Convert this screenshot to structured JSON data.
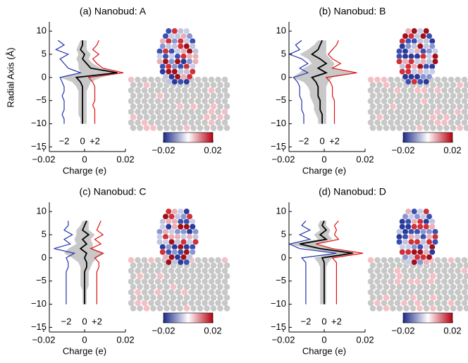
{
  "chart_data": [
    {
      "type": "line",
      "title": "(a) Nanobud: A",
      "xlabel": "Charge (e)",
      "ylabel": "Radial Axis (Å)",
      "xlim": [
        -0.02,
        0.02
      ],
      "ylim": [
        -16,
        12
      ],
      "xticks": [
        {
          "value": -0.02,
          "label": "−0.02"
        },
        0,
        0.02
      ],
      "yticks": [
        {
          "value": -15,
          "label": "−15"
        },
        {
          "value": -10,
          "label": "−10"
        },
        {
          "value": -5,
          "label": "−5"
        },
        0,
        5,
        10
      ],
      "y": [
        -10,
        -9,
        -8,
        -7,
        -6,
        -5,
        -4,
        -3,
        -2,
        -1,
        0,
        1,
        2,
        3,
        4,
        5,
        6,
        7,
        8
      ],
      "band": {
        "color": "#c8c8c8",
        "low": [
          -0.002,
          -0.002,
          -0.003,
          -0.003,
          -0.003,
          -0.003,
          -0.003,
          -0.003,
          -0.004,
          -0.006,
          -0.012,
          -0.002,
          -0.003,
          -0.003,
          -0.004,
          -0.003,
          -0.004,
          -0.003,
          -0.002
        ],
        "high": [
          0.001,
          0.001,
          0.001,
          0.001,
          0.001,
          0.001,
          0.001,
          0.001,
          0.002,
          0.003,
          0.008,
          0.018,
          0.008,
          0.004,
          0.002,
          0.003,
          0.001,
          0.001,
          0.001
        ]
      },
      "series": [
        {
          "color": "#2233aa",
          "values": [
            -0.01,
            -0.01,
            -0.011,
            -0.01,
            -0.01,
            -0.01,
            -0.011,
            -0.01,
            -0.01,
            -0.011,
            -0.012,
            -0.002,
            -0.008,
            -0.01,
            -0.012,
            -0.008,
            -0.014,
            -0.01,
            -0.013
          ]
        },
        {
          "color": "#000000",
          "values": [
            -0.001,
            -0.001,
            -0.001,
            -0.001,
            -0.001,
            -0.001,
            -0.001,
            -0.001,
            -0.001,
            -0.002,
            -0.004,
            0.016,
            0.003,
            0.001,
            -0.001,
            0,
            -0.002,
            -0.001,
            -0.001
          ]
        },
        {
          "color": "#dd1111",
          "values": [
            0.005,
            0.005,
            0.005,
            0.005,
            0.004,
            0.005,
            0.005,
            0.005,
            0.005,
            0.004,
            0.002,
            0.019,
            0.009,
            0.006,
            0.004,
            0.007,
            0.004,
            0.006,
            0.007
          ]
        }
      ],
      "annotations": [
        {
          "text": "−2",
          "color": "#2233aa"
        },
        {
          "text": "0",
          "color": "#000000"
        },
        {
          "text": "+2",
          "color": "#dd1111"
        }
      ],
      "colorbar": {
        "colors": [
          "#1c2a8a",
          "#ffffff",
          "#b80010"
        ],
        "ticks": [
          {
            "value": -0.02,
            "label": "−0.02"
          },
          0.02
        ]
      }
    },
    {
      "type": "line",
      "title": "(b) Nanobud: B",
      "xlabel": "Charge (e)",
      "xlim": [
        -0.02,
        0.02
      ],
      "ylim": [
        -16,
        12
      ],
      "xticks": [
        {
          "value": -0.02,
          "label": "−0.02"
        },
        0,
        0.02
      ],
      "yticks": [
        {
          "value": -15,
          "label": "−15"
        },
        {
          "value": -10,
          "label": "−10"
        },
        {
          "value": -5,
          "label": "−5"
        },
        0,
        5,
        10
      ],
      "y": [
        -10,
        -9,
        -8,
        -7,
        -6,
        -5,
        -4,
        -3,
        -2,
        -1,
        0,
        1,
        2,
        3,
        4,
        5,
        6,
        7,
        8
      ],
      "band": {
        "color": "#c8c8c8",
        "low": [
          -0.003,
          -0.003,
          -0.004,
          -0.005,
          -0.005,
          -0.006,
          -0.007,
          -0.007,
          -0.008,
          -0.01,
          -0.016,
          -0.012,
          -0.01,
          -0.006,
          -0.008,
          -0.012,
          -0.008,
          -0.005,
          -0.003
        ],
        "high": [
          0.001,
          0.001,
          0.001,
          0.001,
          0.001,
          0.001,
          0.001,
          0.001,
          0.001,
          0.002,
          0.004,
          0.016,
          0.004,
          0.005,
          0.003,
          0.001,
          0.001,
          0.001,
          0.001
        ]
      },
      "series": [
        {
          "color": "#2233aa",
          "values": [
            -0.01,
            -0.01,
            -0.01,
            -0.011,
            -0.011,
            -0.011,
            -0.012,
            -0.012,
            -0.012,
            -0.013,
            -0.015,
            -0.008,
            -0.012,
            -0.008,
            -0.011,
            -0.017,
            -0.012,
            -0.014,
            -0.011
          ]
        },
        {
          "color": "#000000",
          "values": [
            -0.001,
            -0.001,
            -0.001,
            -0.002,
            -0.002,
            -0.002,
            -0.003,
            -0.003,
            -0.003,
            -0.004,
            -0.006,
            0.001,
            -0.003,
            0.001,
            -0.002,
            -0.006,
            -0.003,
            -0.002,
            -0.001
          ]
        },
        {
          "color": "#dd1111",
          "values": [
            0.005,
            0.005,
            0.005,
            0.005,
            0.005,
            0.005,
            0.004,
            0.004,
            0.004,
            0.003,
            0.001,
            0.016,
            0.004,
            0.008,
            0.004,
            0.002,
            0.004,
            0.006,
            0.007
          ]
        }
      ],
      "annotations": [
        {
          "text": "−2",
          "color": "#2233aa"
        },
        {
          "text": "0",
          "color": "#000000"
        },
        {
          "text": "+2",
          "color": "#dd1111"
        }
      ],
      "colorbar": {
        "colors": [
          "#1c2a8a",
          "#ffffff",
          "#b80010"
        ],
        "ticks": [
          {
            "value": -0.02,
            "label": "−0.02"
          },
          0.02
        ]
      }
    },
    {
      "type": "line",
      "title": "(c) Nanobud: C",
      "xlabel": "Charge (e)",
      "xlim": [
        -0.02,
        0.02
      ],
      "ylim": [
        -16,
        12
      ],
      "xticks": [
        {
          "value": -0.02,
          "label": "−0.02"
        },
        0,
        0.02
      ],
      "yticks": [
        {
          "value": -15,
          "label": "−15"
        },
        {
          "value": -10,
          "label": "−10"
        },
        {
          "value": -5,
          "label": "−5"
        },
        0,
        5,
        10
      ],
      "y": [
        -10,
        -9,
        -8,
        -7,
        -6,
        -5,
        -4,
        -3,
        -2,
        -1,
        0,
        1,
        2,
        3,
        4,
        5,
        6,
        7,
        8
      ],
      "band": {
        "color": "#c8c8c8",
        "low": [
          -0.001,
          -0.001,
          -0.001,
          -0.001,
          -0.002,
          -0.002,
          -0.002,
          -0.002,
          -0.002,
          -0.003,
          -0.006,
          -0.01,
          -0.008,
          -0.004,
          -0.005,
          -0.004,
          -0.004,
          -0.002,
          -0.001
        ],
        "high": [
          0.001,
          0.001,
          0.001,
          0.001,
          0.002,
          0.002,
          0.002,
          0.002,
          0.003,
          0.004,
          0.006,
          0.01,
          0.004,
          0.004,
          0.003,
          0.005,
          0.002,
          0.002,
          0.002
        ]
      },
      "series": [
        {
          "color": "#2233aa",
          "values": [
            -0.009,
            -0.009,
            -0.009,
            -0.009,
            -0.009,
            -0.009,
            -0.009,
            -0.009,
            -0.008,
            -0.008,
            -0.009,
            -0.005,
            -0.015,
            -0.007,
            -0.01,
            -0.006,
            -0.01,
            -0.008,
            -0.008
          ]
        },
        {
          "color": "#000000",
          "values": [
            0,
            0,
            0,
            0,
            0,
            0,
            0,
            0,
            0.001,
            0.001,
            0,
            0.001,
            -0.002,
            0.001,
            -0.001,
            0.002,
            -0.001,
            0,
            0.001
          ]
        },
        {
          "color": "#dd1111",
          "values": [
            0.006,
            0.006,
            0.006,
            0.006,
            0.006,
            0.006,
            0.006,
            0.006,
            0.007,
            0.007,
            0.005,
            0.009,
            0.003,
            0.008,
            0.005,
            0.009,
            0.006,
            0.007,
            0.008
          ]
        }
      ],
      "annotations": [
        {
          "text": "−2",
          "color": "#2233aa"
        },
        {
          "text": "0",
          "color": "#000000"
        },
        {
          "text": "+2",
          "color": "#dd1111"
        }
      ],
      "colorbar": {
        "colors": [
          "#1c2a8a",
          "#ffffff",
          "#b80010"
        ],
        "ticks": [
          {
            "value": -0.02,
            "label": "−0.02"
          },
          0.02
        ]
      }
    },
    {
      "type": "line",
      "title": "(d) Nanobud: D",
      "xlabel": "Charge (e)",
      "xlim": [
        -0.02,
        0.02
      ],
      "ylim": [
        -16,
        12
      ],
      "xticks": [
        {
          "value": -0.02,
          "label": "−0.02"
        },
        0,
        0.02
      ],
      "yticks": [
        {
          "value": -15,
          "label": "−15"
        },
        {
          "value": -10,
          "label": "−10"
        },
        {
          "value": -5,
          "label": "−5"
        },
        0,
        5,
        10
      ],
      "y": [
        -10,
        -9,
        -8,
        -7,
        -6,
        -5,
        -4,
        -3,
        -2,
        -1,
        0,
        1,
        2,
        3,
        4,
        5,
        6,
        7,
        8
      ],
      "band": {
        "color": "#c8c8c8",
        "low": [
          -0.002,
          -0.002,
          -0.002,
          -0.002,
          -0.002,
          -0.002,
          -0.002,
          -0.002,
          -0.002,
          -0.003,
          -0.005,
          0.004,
          -0.008,
          -0.017,
          -0.003,
          -0.005,
          -0.002,
          -0.003,
          -0.002
        ],
        "high": [
          0.001,
          0.001,
          0.001,
          0.001,
          0.001,
          0.001,
          0.001,
          0.001,
          0.001,
          0.002,
          0.004,
          0.016,
          0.004,
          -0.004,
          0.004,
          0.002,
          0.003,
          0.001,
          0.001
        ]
      },
      "series": [
        {
          "color": "#2233aa",
          "values": [
            -0.009,
            -0.009,
            -0.009,
            -0.009,
            -0.009,
            -0.009,
            -0.009,
            -0.009,
            -0.009,
            -0.009,
            -0.011,
            0.006,
            -0.012,
            -0.017,
            -0.007,
            -0.012,
            -0.007,
            -0.011,
            -0.009
          ]
        },
        {
          "color": "#000000",
          "values": [
            0,
            0,
            0,
            0,
            0,
            0,
            0,
            0,
            0,
            0,
            -0.001,
            0.014,
            -0.002,
            -0.012,
            0.001,
            -0.002,
            0.001,
            -0.001,
            0
          ]
        },
        {
          "color": "#dd1111",
          "values": [
            0.006,
            0.006,
            0.006,
            0.006,
            0.006,
            0.006,
            0.006,
            0.006,
            0.006,
            0.006,
            0.004,
            0.019,
            0.004,
            -0.004,
            0.007,
            0.005,
            0.006,
            0.005,
            0.007
          ]
        }
      ],
      "annotations": [
        {
          "text": "−2",
          "color": "#2233aa"
        },
        {
          "text": "0",
          "color": "#000000"
        },
        {
          "text": "+2",
          "color": "#dd1111"
        }
      ],
      "colorbar": {
        "colors": [
          "#1c2a8a",
          "#ffffff",
          "#b80010"
        ],
        "ticks": [
          {
            "value": -0.02,
            "label": "−0.02"
          },
          0.02
        ]
      }
    }
  ]
}
